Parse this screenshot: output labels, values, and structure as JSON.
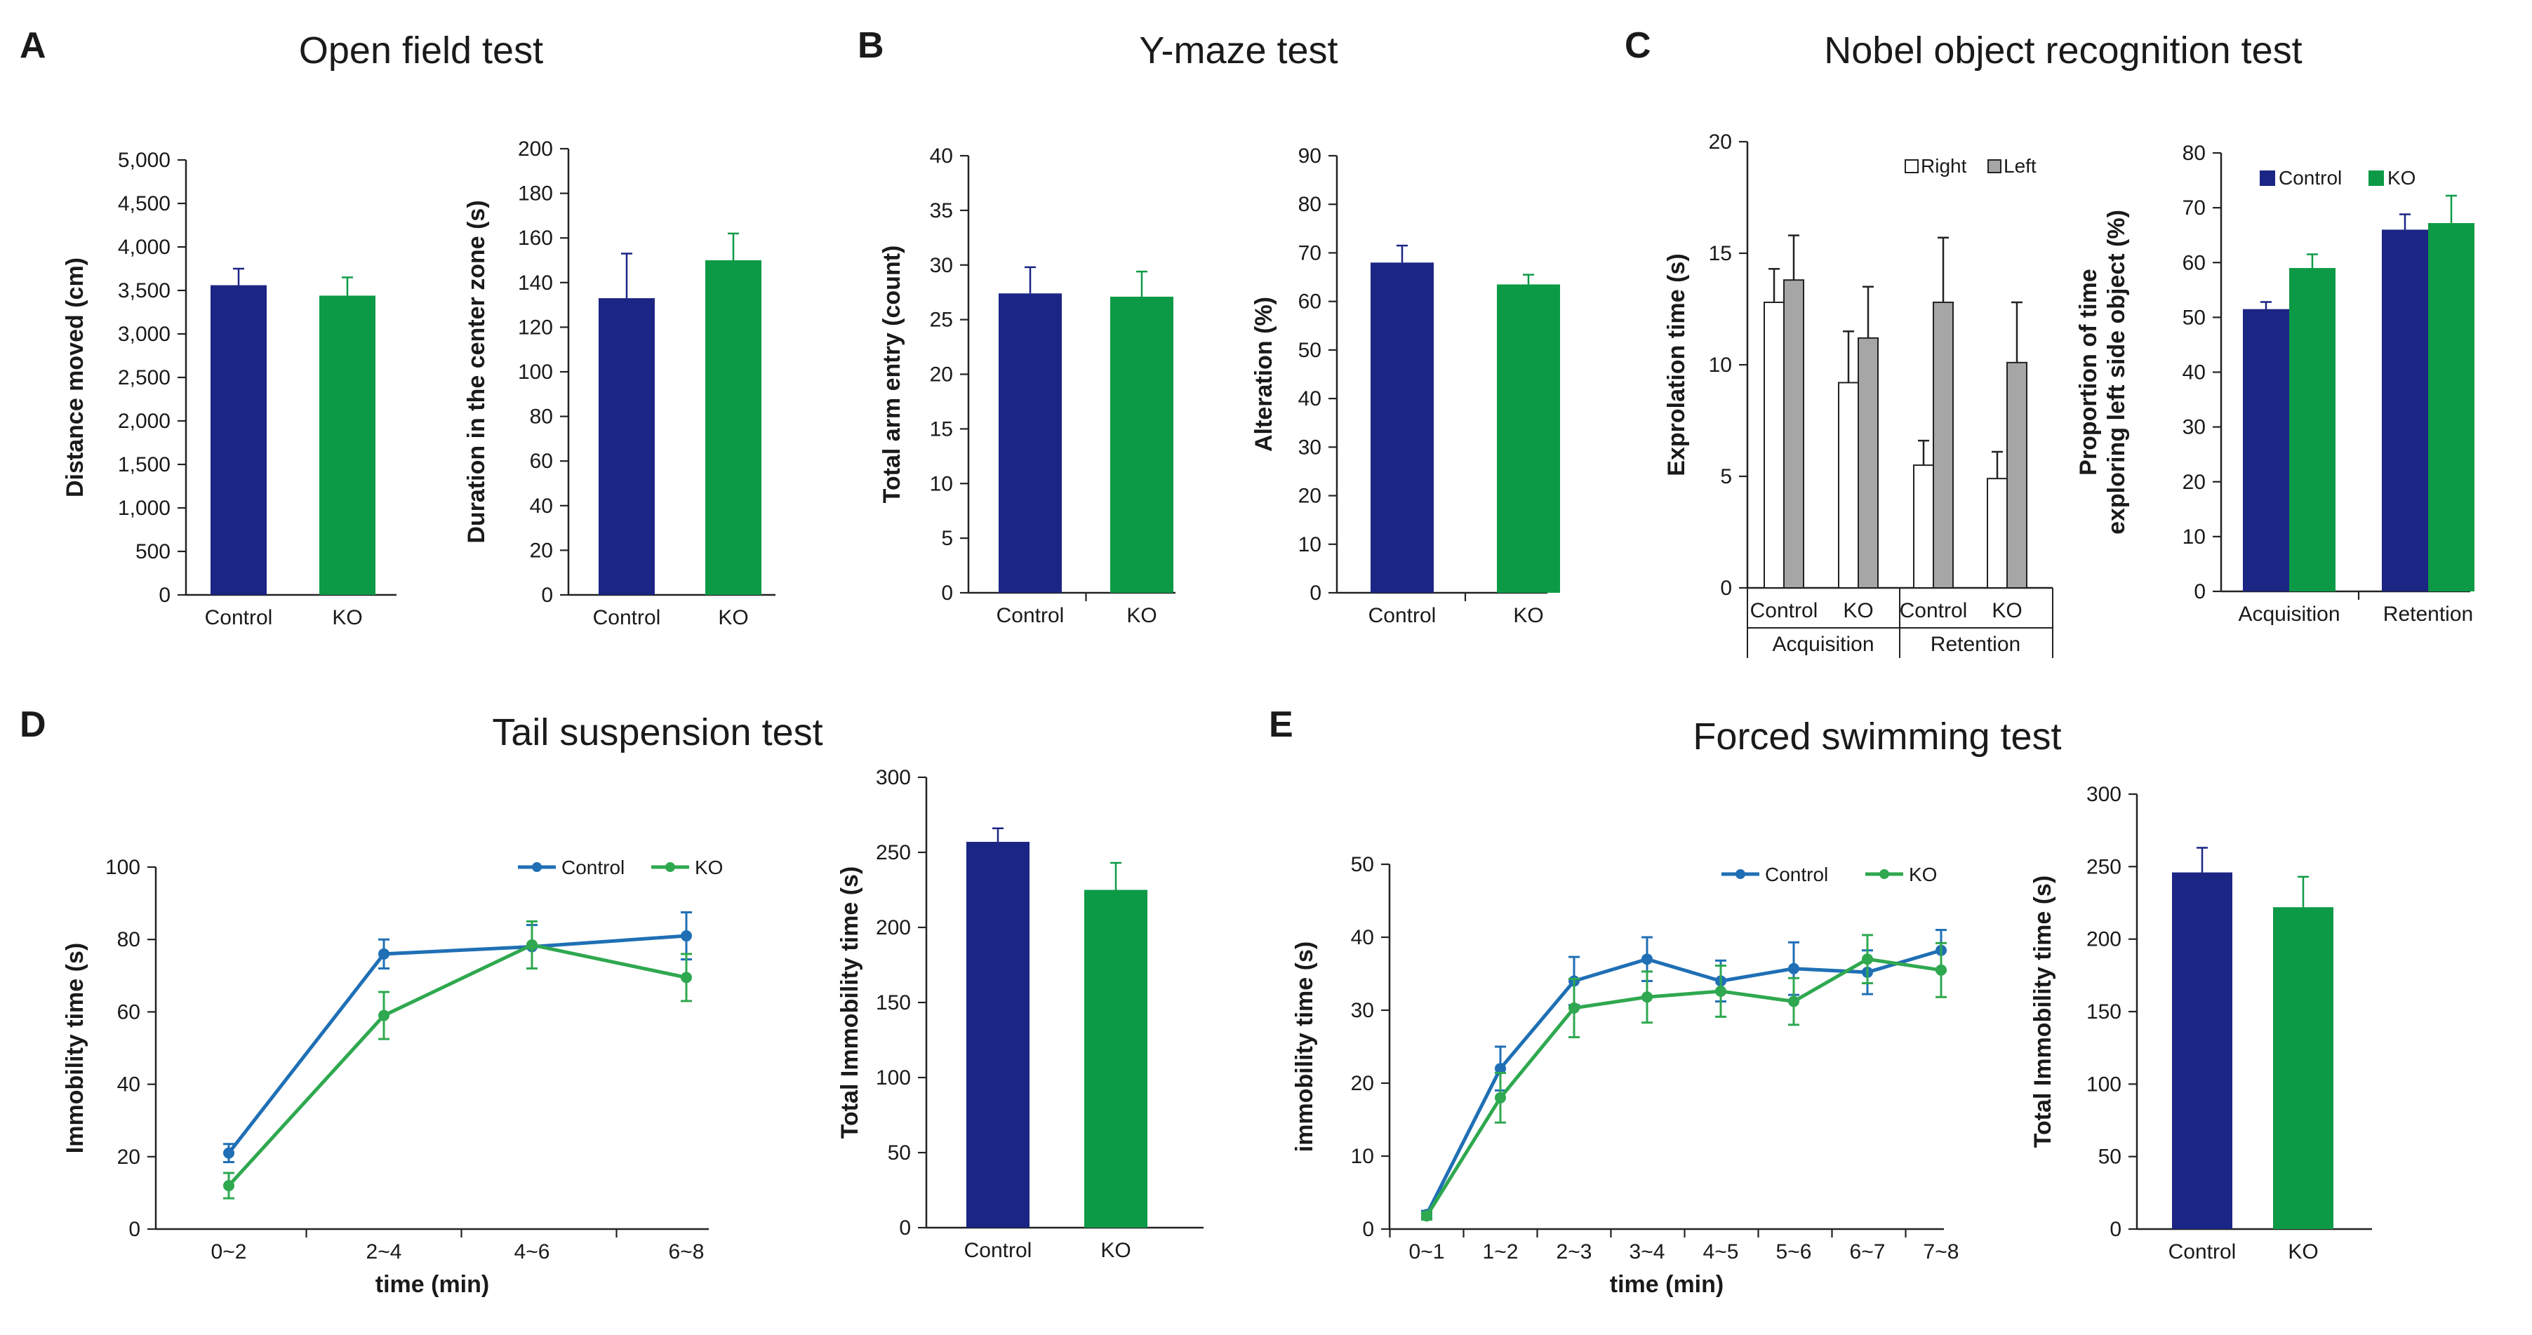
{
  "panels": {
    "A": {
      "label": "A",
      "title": "Open field test"
    },
    "B": {
      "label": "B",
      "title": "Y-maze test"
    },
    "C": {
      "label": "C",
      "title": "Nobel object recognition test"
    },
    "D": {
      "label": "D",
      "title": "Tail suspension test"
    },
    "E": {
      "label": "E",
      "title": "Forced swimming test"
    }
  },
  "legend": {
    "control": "Control",
    "ko": "KO",
    "right": "Right",
    "left": "Left"
  },
  "group_labels": {
    "acquisition": "Acquisition",
    "retention": "Retention"
  },
  "colors": {
    "control_bar": "#1b2584",
    "ko_bar": "#0d9a46",
    "control_line": "#1f6fb5",
    "ko_line": "#2fa84f",
    "gray_bar": "#a6a6a6"
  },
  "chart_data": [
    {
      "id": "A1",
      "type": "bar",
      "title": "",
      "xlabel": "",
      "ylabel": "Distance moved (cm)",
      "categories": [
        "Control",
        "KO"
      ],
      "values": [
        3560,
        3440
      ],
      "errors": [
        190,
        210
      ],
      "ylim": [
        0,
        5000
      ],
      "yticks": [
        "0",
        "500",
        "1,000",
        "1,500",
        "2,000",
        "2,500",
        "3,000",
        "3,500",
        "4,000",
        "4,500",
        "5,000"
      ]
    },
    {
      "id": "A2",
      "type": "bar",
      "title": "",
      "xlabel": "",
      "ylabel": "Duration in the center zone (s)",
      "categories": [
        "Control",
        "KO"
      ],
      "values": [
        133,
        150
      ],
      "errors": [
        20,
        12
      ],
      "ylim": [
        0,
        200
      ],
      "yticks": [
        "0",
        "20",
        "40",
        "60",
        "80",
        "100",
        "120",
        "140",
        "160",
        "180",
        "200"
      ]
    },
    {
      "id": "B1",
      "type": "bar",
      "title": "",
      "xlabel": "",
      "ylabel": "Total arm entry (count)",
      "categories": [
        "Control",
        "KO"
      ],
      "values": [
        27.4,
        27.1
      ],
      "errors": [
        2.4,
        2.3
      ],
      "ylim": [
        0,
        40
      ],
      "yticks": [
        "0",
        "5",
        "10",
        "15",
        "20",
        "25",
        "30",
        "35",
        "40"
      ]
    },
    {
      "id": "B2",
      "type": "bar",
      "title": "",
      "xlabel": "",
      "ylabel": "Alteration (%)",
      "categories": [
        "Control",
        "KO"
      ],
      "values": [
        68,
        63.5
      ],
      "errors": [
        3.5,
        2
      ],
      "ylim": [
        0,
        90
      ],
      "yticks": [
        "0",
        "10",
        "20",
        "30",
        "40",
        "50",
        "60",
        "70",
        "80",
        "90"
      ]
    },
    {
      "id": "C1",
      "type": "bar",
      "title": "",
      "xlabel": "",
      "ylabel": "Exprolation time (s)",
      "categories": [
        "Control",
        "KO",
        "Control",
        "KO"
      ],
      "groups": [
        "Acquisition",
        "Retention"
      ],
      "series": [
        {
          "name": "Right",
          "values": [
            12.8,
            9.2,
            5.5,
            4.9
          ],
          "errors": [
            1.5,
            2.3,
            1.1,
            1.2
          ]
        },
        {
          "name": "Left",
          "values": [
            13.8,
            11.2,
            12.8,
            10.1
          ],
          "errors": [
            2.0,
            2.3,
            2.9,
            2.7
          ]
        }
      ],
      "ylim": [
        0,
        20
      ],
      "yticks": [
        "0",
        "5",
        "10",
        "15",
        "20"
      ]
    },
    {
      "id": "C2",
      "type": "bar",
      "title": "",
      "xlabel": "",
      "ylabel": "Proportion of time exploring left side object (%)",
      "ylabel_lines": [
        "Proportion of time",
        "exploring left side object (%)"
      ],
      "categories": [
        "Acquisition",
        "Retention"
      ],
      "series": [
        {
          "name": "Control",
          "values": [
            51.5,
            66
          ],
          "errors": [
            1.3,
            2.8
          ]
        },
        {
          "name": "KO",
          "values": [
            59,
            67.2
          ],
          "errors": [
            2.5,
            5
          ]
        }
      ],
      "ylim": [
        0,
        80
      ],
      "yticks": [
        "0",
        "10",
        "20",
        "30",
        "40",
        "50",
        "60",
        "70",
        "80"
      ]
    },
    {
      "id": "D1",
      "type": "line",
      "title": "",
      "xlabel": "time (min)",
      "ylabel": "Immobility time (s)",
      "x": [
        "0~2",
        "2~4",
        "4~6",
        "6~8"
      ],
      "series": [
        {
          "name": "Control",
          "values": [
            21,
            76,
            78,
            81
          ],
          "errors": [
            2.5,
            4,
            6,
            6.5
          ]
        },
        {
          "name": "KO",
          "values": [
            12,
            59,
            78.5,
            69.5
          ],
          "errors": [
            3.5,
            6.5,
            6.5,
            6.5
          ]
        }
      ],
      "ylim": [
        0,
        100
      ],
      "yticks": [
        "0",
        "20",
        "40",
        "60",
        "80",
        "100"
      ]
    },
    {
      "id": "D2",
      "type": "bar",
      "title": "",
      "xlabel": "",
      "ylabel": "Total Immobility time (s)",
      "categories": [
        "Control",
        "KO"
      ],
      "values": [
        257,
        225
      ],
      "errors": [
        9,
        18
      ],
      "ylim": [
        0,
        300
      ],
      "yticks": [
        "0",
        "50",
        "100",
        "150",
        "200",
        "250",
        "300"
      ]
    },
    {
      "id": "E1",
      "type": "line",
      "title": "",
      "xlabel": "time (min)",
      "ylabel": "immobility time (s)",
      "x": [
        "0~1",
        "1~2",
        "2~3",
        "3~4",
        "4~5",
        "5~6",
        "6~7",
        "7~8"
      ],
      "series": [
        {
          "name": "Control",
          "values": [
            2,
            22,
            34,
            37,
            34,
            35.7,
            35.2,
            38.2
          ],
          "errors": [
            0.5,
            3,
            3.3,
            3,
            2.8,
            3.6,
            3,
            2.8
          ]
        },
        {
          "name": "KO",
          "values": [
            1.8,
            18,
            30.3,
            31.8,
            32.6,
            31.2,
            37,
            35.5
          ],
          "errors": [
            0.5,
            3.4,
            4,
            3.5,
            3.5,
            3.2,
            3.3,
            3.7
          ]
        }
      ],
      "ylim": [
        0,
        50
      ],
      "yticks": [
        "0",
        "10",
        "20",
        "30",
        "40",
        "50"
      ]
    },
    {
      "id": "E2",
      "type": "bar",
      "title": "",
      "xlabel": "",
      "ylabel": "Total Immobility time (s)",
      "categories": [
        "Control",
        "KO"
      ],
      "values": [
        246,
        222
      ],
      "errors": [
        17,
        21
      ],
      "ylim": [
        0,
        300
      ],
      "yticks": [
        "0",
        "50",
        "100",
        "150",
        "200",
        "250",
        "300"
      ]
    }
  ]
}
